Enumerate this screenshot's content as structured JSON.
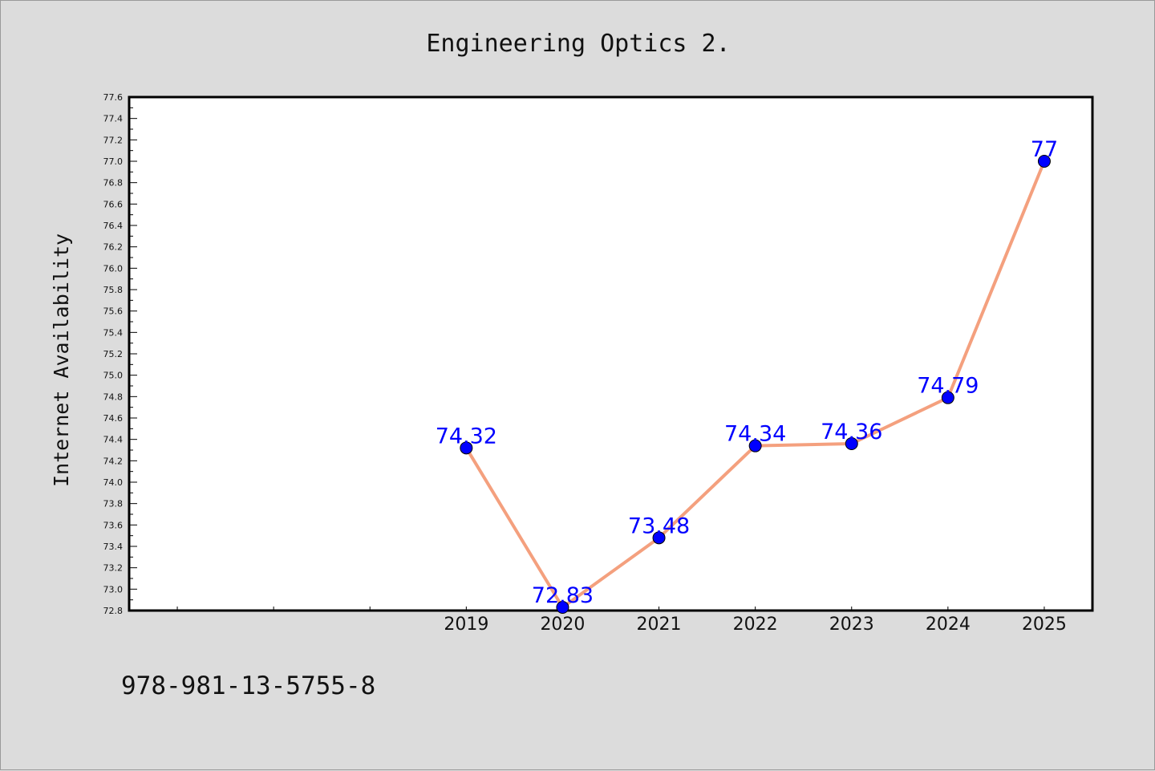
{
  "chart_data": {
    "type": "line",
    "title": "Engineering Optics 2.",
    "xlabel": "",
    "ylabel": "Internet Availability",
    "categories": [
      "2019",
      "2020",
      "2021",
      "2022",
      "2023",
      "2024",
      "2025"
    ],
    "data_labels": [
      "74.32",
      "72.83",
      "73.48",
      "74.34",
      "74.36",
      "74.79",
      "77"
    ],
    "series": [
      {
        "values": [
          74.32,
          72.83,
          73.48,
          74.34,
          74.36,
          74.79,
          77.0
        ]
      }
    ],
    "ylim": [
      72.8,
      77.6
    ],
    "yticks": [
      "72.8",
      "73.0",
      "73.2",
      "73.4",
      "73.6",
      "73.8",
      "74.0",
      "74.2",
      "74.4",
      "74.6",
      "74.8",
      "75.0",
      "75.2",
      "75.4",
      "75.6",
      "75.8",
      "76.0",
      "76.2",
      "76.4",
      "76.6",
      "76.8",
      "77.0",
      "77.2",
      "77.4",
      "77.6"
    ],
    "grid": false,
    "line_color": "#f4a07e",
    "marker_color": "#0000ff",
    "label_color": "#0000ff",
    "footer": "978-981-13-5755-8"
  }
}
